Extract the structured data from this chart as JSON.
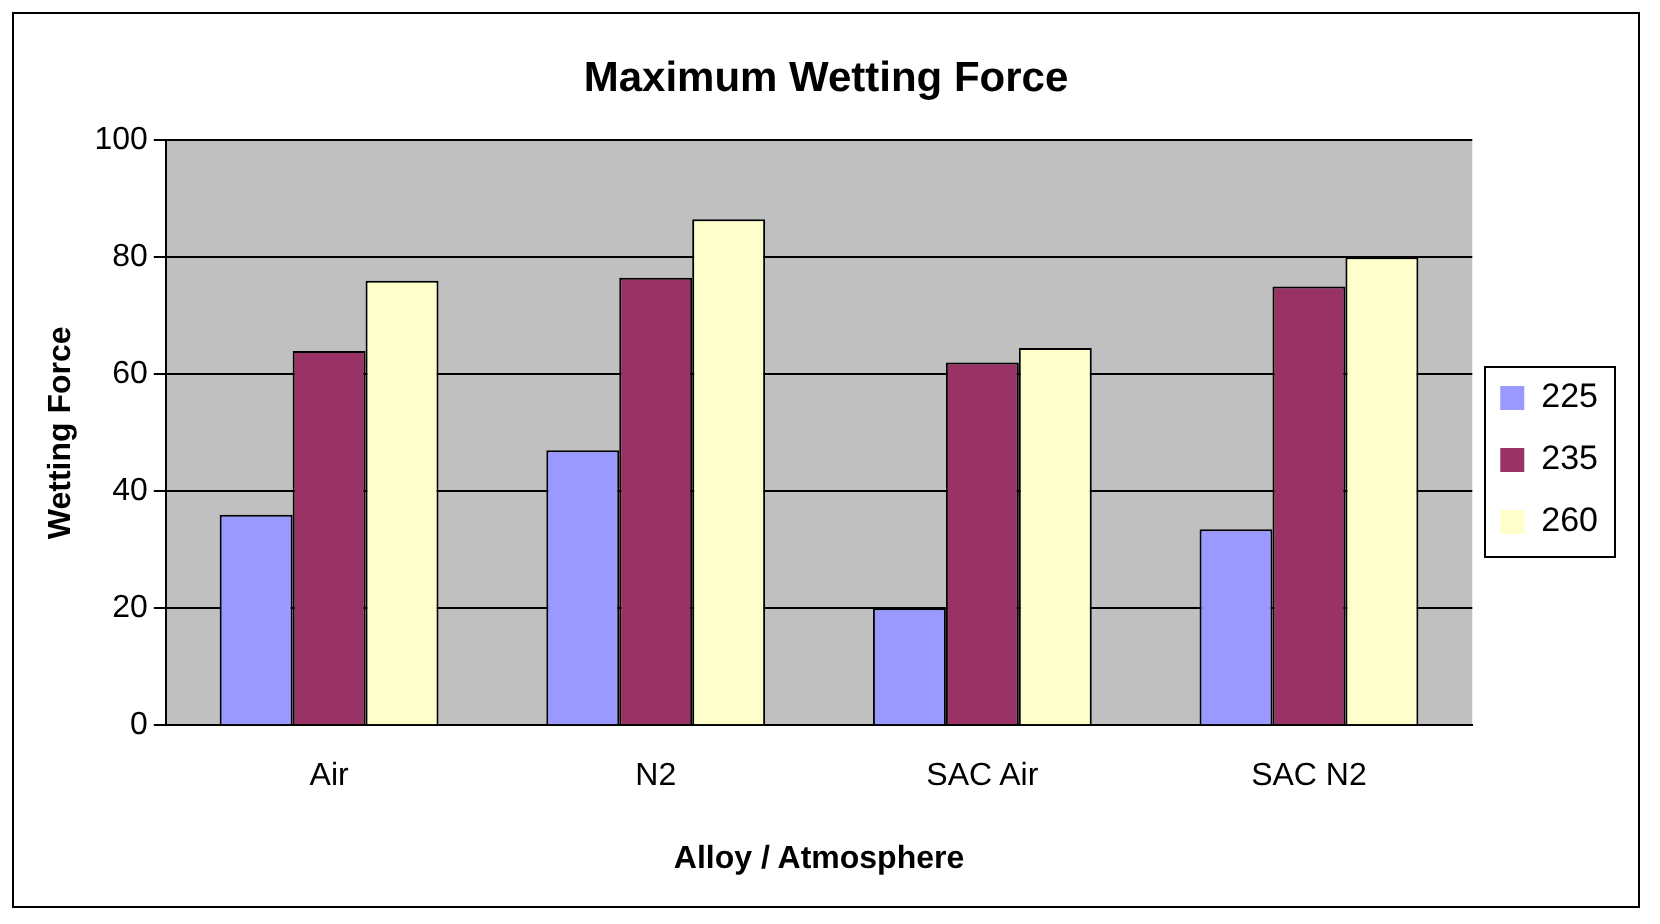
{
  "chart_data": {
    "type": "bar",
    "title": "Maximum Wetting Force",
    "xlabel": "Alloy / Atmosphere",
    "ylabel": "Wetting Force",
    "categories": [
      "Air",
      "N2",
      "SAC Air",
      "SAC N2"
    ],
    "series": [
      {
        "name": "225",
        "color": "#9999ff",
        "values": [
          36,
          47,
          20,
          33.5
        ]
      },
      {
        "name": "235",
        "color": "#993366",
        "values": [
          64,
          76.5,
          62,
          75
        ]
      },
      {
        "name": "260",
        "color": "#ffffcc",
        "values": [
          76,
          86.5,
          64.5,
          80
        ]
      }
    ],
    "ylim": [
      0,
      100
    ],
    "yticks": [
      0,
      20,
      40,
      60,
      80,
      100
    ],
    "grid": "y",
    "legend": "right"
  }
}
